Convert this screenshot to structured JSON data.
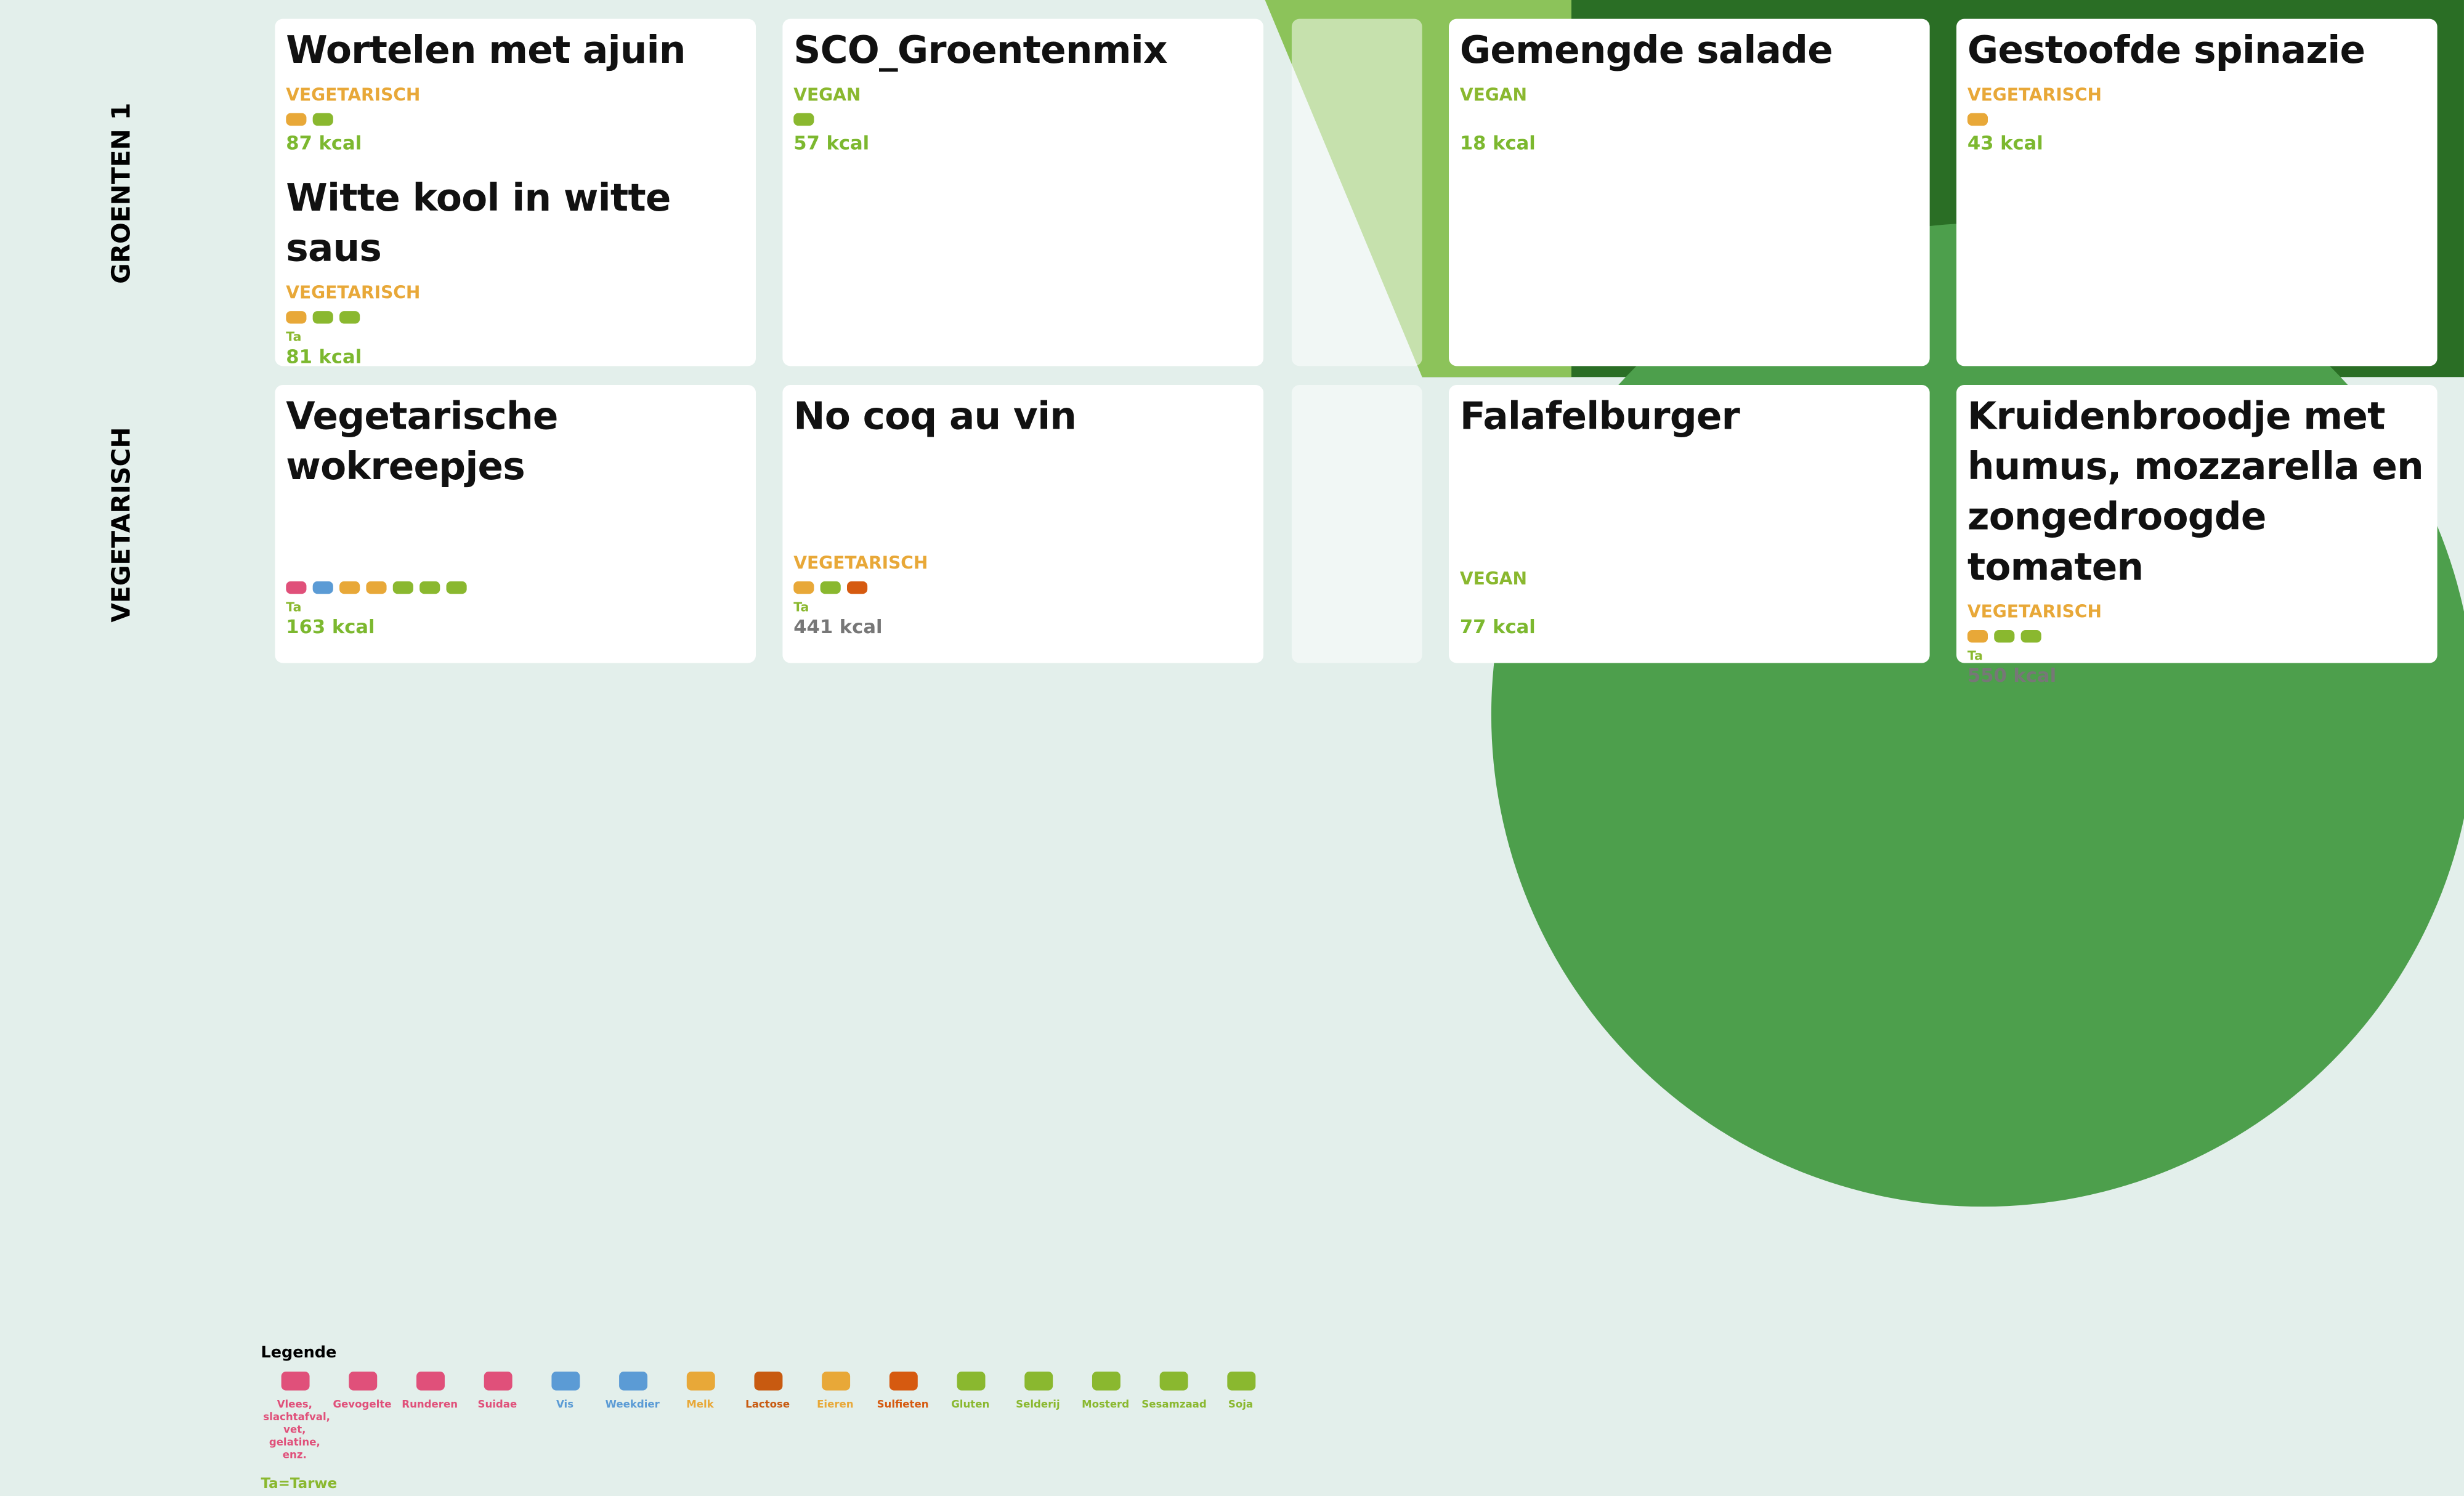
{
  "rows": [
    {
      "label": "GROENTEN 1",
      "cells": [
        {
          "dishes": [
            {
              "name": "Wortelen met ajuin",
              "diet": "VEGETARISCH",
              "allergens": [
                "Melk",
                "Soja"
              ],
              "kcal": "87 kcal"
            },
            {
              "name": "Witte kool in witte saus",
              "diet": "VEGETARISCH",
              "allergens": [
                "Melk",
                "Gluten",
                "Soja"
              ],
              "extra": "Ta",
              "kcal": "81 kcal"
            }
          ]
        },
        {
          "dishes": [
            {
              "name": "SCO_Groentenmix",
              "diet": "VEGAN",
              "allergens": [
                "Mosterd"
              ],
              "kcal": "57 kcal"
            }
          ]
        },
        {
          "dishes": [
            {
              "name": "Gemengde salade",
              "diet": "VEGAN",
              "allergens": [],
              "kcal": "18 kcal"
            }
          ]
        },
        {
          "dishes": [
            {
              "name": "Gestoofde spinazie",
              "diet": "VEGETARISCH",
              "allergens": [
                "Melk"
              ],
              "kcal": "43 kcal"
            }
          ]
        }
      ]
    },
    {
      "label": "VEGETARISCH",
      "cells": [
        {
          "dishes": [
            {
              "name": "Vegetarische wokreepjes",
              "allergens": [
                "Vlees, slachtafval, vet, gelatine, enz.",
                "Weekdier",
                "Melk",
                "Eieren",
                "Gluten",
                "Sesamzaad",
                "Soja"
              ],
              "extra": "Ta",
              "kcal": "163 kcal"
            }
          ]
        },
        {
          "dishes": [
            {
              "name": "No coq au vin",
              "diet": "VEGETARISCH",
              "allergens": [
                "Melk",
                "Gluten",
                "Sulfieten"
              ],
              "extra": "Ta",
              "kcal": "441 kcal",
              "kcal_color": "#777777"
            }
          ]
        },
        {
          "dishes": [
            {
              "name": "Falafelburger",
              "diet": "VEGAN",
              "allergens": [],
              "kcal": "77 kcal"
            }
          ]
        },
        {
          "dishes": [
            {
              "name": "Kruidenbroodje met humus, mozzarella en zongedroogde tomaten",
              "diet": "VEGETARISCH",
              "allergens": [
                "Melk",
                "Gluten",
                "Sesamzaad"
              ],
              "extra": "Ta",
              "kcal": "550 kcal",
              "kcal_color": "#777777"
            }
          ]
        }
      ]
    }
  ],
  "legend": {
    "title": "Legende",
    "note": "Ta=Tarwe",
    "items": [
      {
        "name": "Vlees, slachtafval, vet, gelatine, enz.",
        "color": "#e0507a"
      },
      {
        "name": "Gevogelte",
        "color": "#e0507a"
      },
      {
        "name": "Runderen",
        "color": "#e0507a"
      },
      {
        "name": "Suidae",
        "color": "#e0507a"
      },
      {
        "name": "Vis",
        "color": "#5b9bd5"
      },
      {
        "name": "Weekdier",
        "color": "#5b9bd5"
      },
      {
        "name": "Melk",
        "color": "#e8a838"
      },
      {
        "name": "Lactose",
        "color": "#c85a10"
      },
      {
        "name": "Eieren",
        "color": "#e8a838"
      },
      {
        "name": "Sulfieten",
        "color": "#d65a10"
      },
      {
        "name": "Gluten",
        "color": "#8ab82f"
      },
      {
        "name": "Selderij",
        "color": "#8ab82f"
      },
      {
        "name": "Mosterd",
        "color": "#8ab82f"
      },
      {
        "name": "Sesamzaad",
        "color": "#8ab82f"
      },
      {
        "name": "Soja",
        "color": "#8ab82f"
      }
    ]
  }
}
